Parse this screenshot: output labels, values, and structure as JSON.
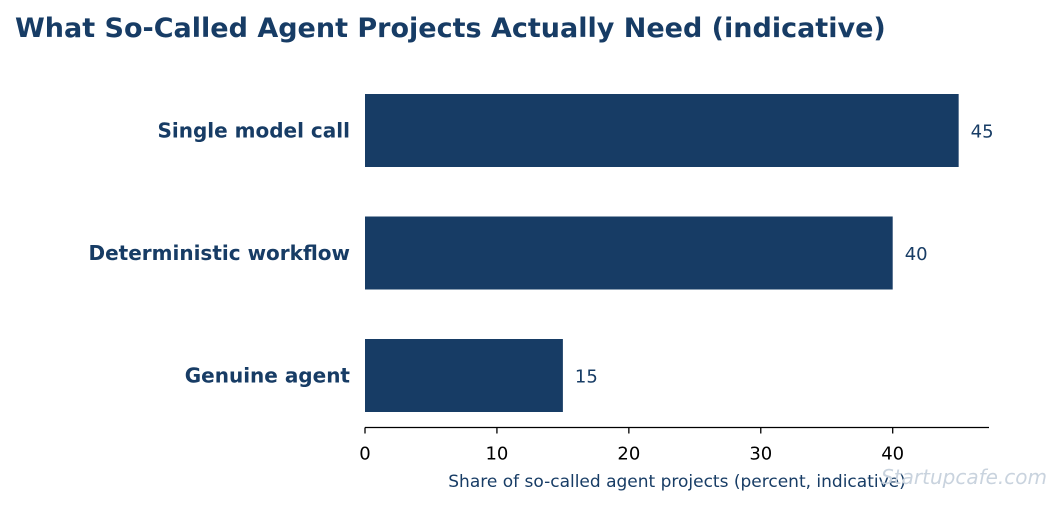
{
  "chart_data": {
    "type": "bar",
    "orientation": "horizontal",
    "title": "What So-Called Agent Projects Actually Need (indicative)",
    "xlabel": "Share of so-called agent projects (percent, indicative)",
    "categories": [
      "Single model call",
      "Deterministic workflow",
      "Genuine agent"
    ],
    "values": [
      45,
      40,
      15
    ],
    "xlim": [
      0,
      47.3
    ],
    "xticks": [
      0,
      10,
      20,
      30,
      40
    ],
    "grid": false,
    "legend": false
  },
  "watermark": "Startupcafe.com",
  "colors": {
    "bar": "#173c65",
    "text": "#173c65",
    "axis": "#000000",
    "watermark": "#c9d3de"
  }
}
